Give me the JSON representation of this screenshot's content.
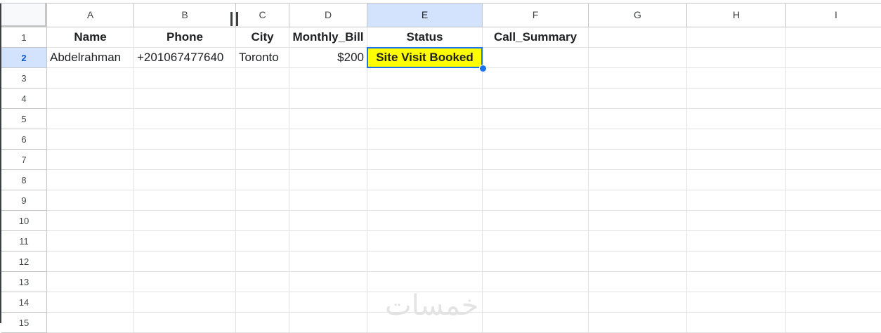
{
  "columns": [
    "A",
    "B",
    "C",
    "D",
    "E",
    "F",
    "G",
    "H",
    "I"
  ],
  "row_numbers": [
    "1",
    "2",
    "3",
    "4",
    "5",
    "6",
    "7",
    "8",
    "9",
    "10",
    "11",
    "12",
    "13",
    "14",
    "15"
  ],
  "header_row": [
    "Name",
    "Phone",
    "City",
    "Monthly_Bill",
    "Status",
    "Call_Summary",
    "",
    "",
    ""
  ],
  "data_rows": [
    [
      "Abdelrahman",
      "+201067477640",
      "Toronto",
      "$200",
      "Site Visit Booked",
      "",
      "",
      "",
      ""
    ]
  ],
  "selected_cell": "E2",
  "colors": {
    "selection": "#1a73e8",
    "status_highlight": "#ffff00",
    "header_selected": "#d3e3fd"
  },
  "watermark": "خمسات"
}
